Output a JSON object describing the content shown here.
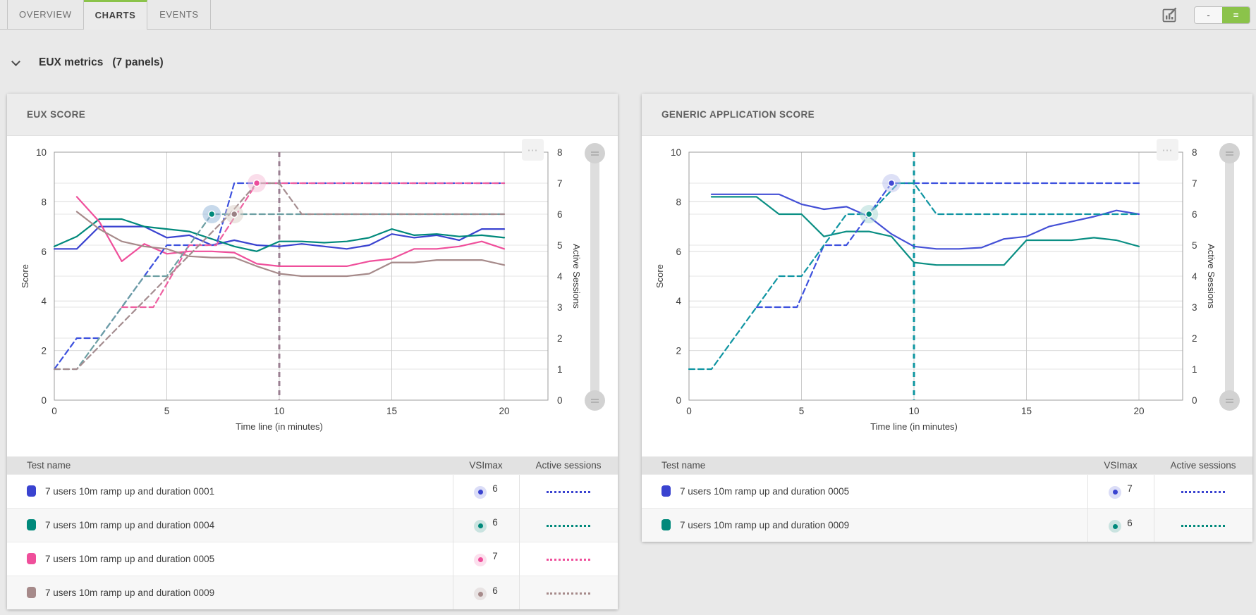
{
  "tabs": [
    {
      "label": "OVERVIEW",
      "active": false
    },
    {
      "label": "CHARTS",
      "active": true
    },
    {
      "label": "EVENTS",
      "active": false
    }
  ],
  "toolbar": {
    "edit_charts_icon": "chart-edit",
    "layout_toggle": {
      "single_label": "-",
      "double_label": "="
    }
  },
  "icons": {
    "more": "⋯"
  },
  "accent": {
    "green": "#8bc34a"
  },
  "section": {
    "title": "EUX metrics",
    "count": "(7 panels)"
  },
  "table_headers": {
    "test_name": "Test name",
    "vsimax": "VSImax",
    "active_sessions": "Active sessions"
  },
  "chart_data": [
    {
      "type": "line",
      "title": "EUX SCORE",
      "xlabel": "Time line (in minutes)",
      "ylabel": "Score",
      "y2label": "Active Sessions",
      "xlim": [
        0,
        20
      ],
      "xticks": [
        0,
        5,
        10,
        15,
        20
      ],
      "ylim": [
        0,
        10
      ],
      "yticks": [
        0,
        2,
        4,
        6,
        8,
        10
      ],
      "y2lim": [
        0,
        8
      ],
      "y2ticks": [
        0,
        1,
        2,
        3,
        4,
        5,
        6,
        7,
        8
      ],
      "grid": true,
      "vsimax_vline": {
        "x": 10,
        "color": "#9b7f92"
      },
      "series": [
        {
          "name": "7 users 10m ramp up and duration 0001",
          "axis": "left",
          "style": "solid",
          "color": "#3a43d0",
          "points": [
            [
              0,
              6.1
            ],
            [
              1,
              6.1
            ],
            [
              2,
              7.0
            ],
            [
              3,
              7.0
            ],
            [
              4,
              7.0
            ],
            [
              5,
              6.55
            ],
            [
              6,
              6.65
            ],
            [
              7,
              6.25
            ],
            [
              8,
              6.45
            ],
            [
              9,
              6.25
            ],
            [
              10,
              6.2
            ],
            [
              11,
              6.3
            ],
            [
              12,
              6.2
            ],
            [
              13,
              6.1
            ],
            [
              14,
              6.25
            ],
            [
              15,
              6.7
            ],
            [
              16,
              6.55
            ],
            [
              17,
              6.65
            ],
            [
              18,
              6.45
            ],
            [
              19,
              6.9
            ],
            [
              20,
              6.9
            ]
          ]
        },
        {
          "name": "7 users 10m ramp up and duration 0004",
          "axis": "left",
          "style": "solid",
          "color": "#00897b",
          "points": [
            [
              0,
              6.2
            ],
            [
              1,
              6.6
            ],
            [
              2,
              7.3
            ],
            [
              3,
              7.3
            ],
            [
              4,
              7.0
            ],
            [
              5,
              6.9
            ],
            [
              6,
              6.8
            ],
            [
              7,
              6.5
            ],
            [
              8,
              6.2
            ],
            [
              9,
              6.0
            ],
            [
              10,
              6.4
            ],
            [
              11,
              6.4
            ],
            [
              12,
              6.35
            ],
            [
              13,
              6.4
            ],
            [
              14,
              6.55
            ],
            [
              15,
              6.9
            ],
            [
              16,
              6.65
            ],
            [
              17,
              6.7
            ],
            [
              18,
              6.6
            ],
            [
              19,
              6.65
            ],
            [
              20,
              6.55
            ]
          ]
        },
        {
          "name": "7 users 10m ramp up and duration 0005",
          "axis": "left",
          "style": "solid",
          "color": "#ef4f9b",
          "points": [
            [
              1,
              8.2
            ],
            [
              2,
              7.2
            ],
            [
              3,
              5.6
            ],
            [
              4,
              6.3
            ],
            [
              5,
              5.9
            ],
            [
              6,
              6.0
            ],
            [
              7,
              6.0
            ],
            [
              8,
              5.95
            ],
            [
              9,
              5.5
            ],
            [
              10,
              5.4
            ],
            [
              11,
              5.4
            ],
            [
              12,
              5.4
            ],
            [
              13,
              5.4
            ],
            [
              14,
              5.6
            ],
            [
              15,
              5.7
            ],
            [
              16,
              6.1
            ],
            [
              17,
              6.1
            ],
            [
              18,
              6.2
            ],
            [
              19,
              6.4
            ],
            [
              20,
              6.1
            ]
          ]
        },
        {
          "name": "7 users 10m ramp up and duration 0009",
          "axis": "left",
          "style": "solid",
          "color": "#a68a8a",
          "points": [
            [
              1,
              7.6
            ],
            [
              2,
              6.9
            ],
            [
              3,
              6.4
            ],
            [
              4,
              6.2
            ],
            [
              5,
              6.1
            ],
            [
              6,
              5.8
            ],
            [
              7,
              5.75
            ],
            [
              8,
              5.75
            ],
            [
              9,
              5.4
            ],
            [
              10,
              5.1
            ],
            [
              11,
              5.0
            ],
            [
              12,
              5.0
            ],
            [
              13,
              5.0
            ],
            [
              14,
              5.1
            ],
            [
              15,
              5.55
            ],
            [
              16,
              5.55
            ],
            [
              17,
              5.65
            ],
            [
              18,
              5.65
            ],
            [
              19,
              5.65
            ],
            [
              20,
              5.45
            ]
          ]
        },
        {
          "name": "7 users 10m ramp up and duration 0001 — active sessions",
          "axis": "right",
          "style": "dashed",
          "color": "#3d51de",
          "points": [
            [
              0,
              1
            ],
            [
              1,
              2
            ],
            [
              2,
              2
            ],
            [
              5,
              5
            ],
            [
              7.2,
              5
            ],
            [
              8,
              7
            ],
            [
              20,
              7
            ]
          ]
        },
        {
          "name": "7 users 10m ramp up and duration 0004 — active sessions",
          "axis": "right",
          "style": "dashed",
          "color": "#6d9fa3",
          "points": [
            [
              0,
              1
            ],
            [
              1,
              1
            ],
            [
              4,
              4
            ],
            [
              5,
              4
            ],
            [
              7,
              6
            ],
            [
              20,
              6
            ]
          ]
        },
        {
          "name": "7 users 10m ramp up and duration 0005 — active sessions",
          "axis": "right",
          "style": "dashed",
          "color": "#ee60a1",
          "points": [
            [
              3,
              3
            ],
            [
              4.4,
              3
            ],
            [
              6,
              5
            ],
            [
              7.2,
              5
            ],
            [
              9,
              7
            ],
            [
              20,
              7
            ]
          ]
        },
        {
          "name": "7 users 10m ramp up and duration 0009 — active sessions",
          "axis": "right",
          "style": "dashed",
          "color": "#a58d90",
          "points": [
            [
              0,
              1
            ],
            [
              1,
              1
            ],
            [
              7.8,
              6
            ],
            [
              9,
              7
            ],
            [
              10,
              7
            ],
            [
              11,
              6
            ],
            [
              20,
              6
            ]
          ]
        }
      ],
      "markers": [
        {
          "x": 7,
          "y": 6,
          "axis": "right",
          "color": "#00897b",
          "halo": "#8fb4d8"
        },
        {
          "x": 8,
          "y": 6,
          "axis": "right",
          "color": "#9a8084",
          "halo": "#d9cdc5"
        },
        {
          "x": 9,
          "y": 7,
          "axis": "right",
          "color": "#ec4c9b",
          "halo": "#f6bcd6"
        }
      ],
      "table_rows": [
        {
          "color": "#3a43d0",
          "name": "7 users 10m ramp up and duration 0001",
          "vsimax": "6"
        },
        {
          "color": "#00897b",
          "name": "7 users 10m ramp up and duration 0004",
          "vsimax": "6"
        },
        {
          "color": "#ef4f9b",
          "name": "7 users 10m ramp up and duration 0005",
          "vsimax": "7"
        },
        {
          "color": "#a68a8a",
          "name": "7 users 10m ramp up and duration 0009",
          "vsimax": "6"
        }
      ]
    },
    {
      "type": "line",
      "title": "GENERIC APPLICATION SCORE",
      "xlabel": "Time line (in minutes)",
      "ylabel": "Score",
      "y2label": "Active Sessions",
      "xlim": [
        0,
        20
      ],
      "xticks": [
        0,
        5,
        10,
        15,
        20
      ],
      "ylim": [
        0,
        10
      ],
      "yticks": [
        0,
        2,
        4,
        6,
        8,
        10
      ],
      "y2lim": [
        0,
        8
      ],
      "y2ticks": [
        0,
        1,
        2,
        3,
        4,
        5,
        6,
        7,
        8
      ],
      "grid": true,
      "vsimax_vline": {
        "x": 10,
        "color": "#0d96a0"
      },
      "series": [
        {
          "name": "7 users 10m ramp up and duration 0005",
          "axis": "left",
          "style": "solid",
          "color": "#4450d6",
          "points": [
            [
              1,
              8.3
            ],
            [
              2,
              8.3
            ],
            [
              3,
              8.3
            ],
            [
              4,
              8.3
            ],
            [
              5,
              7.9
            ],
            [
              6,
              7.7
            ],
            [
              7,
              7.8
            ],
            [
              8,
              7.4
            ],
            [
              9,
              6.7
            ],
            [
              10,
              6.2
            ],
            [
              11,
              6.1
            ],
            [
              12,
              6.1
            ],
            [
              13,
              6.15
            ],
            [
              14,
              6.5
            ],
            [
              15,
              6.6
            ],
            [
              16,
              7.0
            ],
            [
              17,
              7.2
            ],
            [
              18,
              7.4
            ],
            [
              19,
              7.65
            ],
            [
              20,
              7.5
            ]
          ]
        },
        {
          "name": "7 users 10m ramp up and duration 0009",
          "axis": "left",
          "style": "solid",
          "color": "#0b8f84",
          "points": [
            [
              1,
              8.2
            ],
            [
              2,
              8.2
            ],
            [
              3,
              8.2
            ],
            [
              4,
              7.5
            ],
            [
              5,
              7.5
            ],
            [
              6,
              6.6
            ],
            [
              7,
              6.8
            ],
            [
              8,
              6.8
            ],
            [
              9,
              6.6
            ],
            [
              10,
              5.55
            ],
            [
              11,
              5.45
            ],
            [
              12,
              5.45
            ],
            [
              13,
              5.45
            ],
            [
              14,
              5.45
            ],
            [
              15,
              6.45
            ],
            [
              16,
              6.45
            ],
            [
              17,
              6.45
            ],
            [
              18,
              6.55
            ],
            [
              19,
              6.45
            ],
            [
              20,
              6.2
            ]
          ]
        },
        {
          "name": "7 users 10m ramp up and duration 0005 — active sessions",
          "axis": "right",
          "style": "dashed",
          "color": "#3d51de",
          "points": [
            [
              3,
              3
            ],
            [
              4.8,
              3
            ],
            [
              6,
              5
            ],
            [
              7,
              5
            ],
            [
              9,
              7
            ],
            [
              20,
              7
            ]
          ]
        },
        {
          "name": "7 users 10m ramp up and duration 0009 — active sessions",
          "axis": "right",
          "style": "dashed",
          "color": "#1095a2",
          "points": [
            [
              0,
              1
            ],
            [
              1,
              1
            ],
            [
              4,
              4
            ],
            [
              5,
              4
            ],
            [
              7,
              6
            ],
            [
              8,
              6
            ],
            [
              9.3,
              7
            ],
            [
              10,
              7
            ],
            [
              11,
              6
            ],
            [
              20,
              6
            ]
          ]
        }
      ],
      "markers": [
        {
          "x": 8,
          "y": 6,
          "axis": "right",
          "color": "#00897b",
          "halo": "#a8d8d3"
        },
        {
          "x": 9,
          "y": 7,
          "axis": "right",
          "color": "#4149d4",
          "halo": "#bcc2ee"
        }
      ],
      "table_rows": [
        {
          "color": "#3a43d0",
          "name": "7 users 10m ramp up and duration 0005",
          "vsimax": "7"
        },
        {
          "color": "#00897b",
          "name": "7 users 10m ramp up and duration 0009",
          "vsimax": "6"
        }
      ]
    }
  ]
}
